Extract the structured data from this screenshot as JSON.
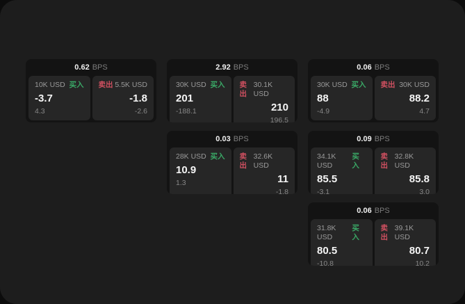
{
  "labels": {
    "bps_unit": "BPS",
    "buy": "买入",
    "sell": "卖出"
  },
  "colors": {
    "buy_accent": "#3aa866",
    "sell_accent": "#cf5060",
    "panel_background": "#1d1d1d",
    "card_background": "#131313",
    "pane_background": "#262626"
  },
  "cards": [
    {
      "bps": "0.62",
      "buy": {
        "amount": "10K USD",
        "price": "-3.7",
        "change": "4.3"
      },
      "sell": {
        "amount": "5.5K USD",
        "price": "-1.8",
        "change": "-2.6"
      }
    },
    {
      "bps": "2.92",
      "buy": {
        "amount": "30K USD",
        "price": "201",
        "change": "-188.1"
      },
      "sell": {
        "amount": "30.1K USD",
        "price": "210",
        "change": "196.5"
      }
    },
    {
      "bps": "0.06",
      "buy": {
        "amount": "30K USD",
        "price": "88",
        "change": "-4.9"
      },
      "sell": {
        "amount": "30K USD",
        "price": "88.2",
        "change": "4.7"
      }
    },
    {
      "bps": "0.03",
      "buy": {
        "amount": "28K USD",
        "price": "10.9",
        "change": "1.3"
      },
      "sell": {
        "amount": "32.6K USD",
        "price": "11",
        "change": "-1.8"
      }
    },
    {
      "bps": "0.09",
      "buy": {
        "amount": "34.1K USD",
        "price": "85.5",
        "change": "-3.1"
      },
      "sell": {
        "amount": "32.8K USD",
        "price": "85.8",
        "change": "3.0"
      }
    },
    {
      "bps": "0.06",
      "buy": {
        "amount": "31.8K USD",
        "price": "80.5",
        "change": "-10.8"
      },
      "sell": {
        "amount": "39.1K USD",
        "price": "80.7",
        "change": "10.2"
      }
    }
  ]
}
